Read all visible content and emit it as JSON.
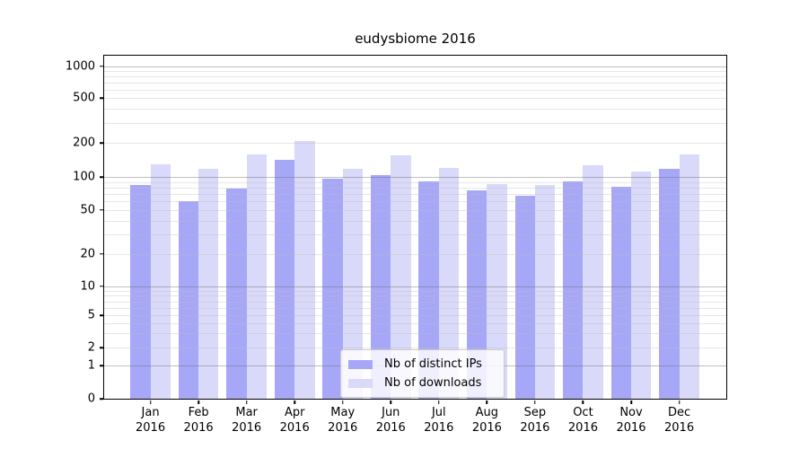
{
  "chart_data": {
    "type": "bar",
    "title": "eudysbiome 2016",
    "categories": [
      "Jan",
      "Feb",
      "Mar",
      "Apr",
      "May",
      "Jun",
      "Jul",
      "Aug",
      "Sep",
      "Oct",
      "Nov",
      "Dec"
    ],
    "year": "2016",
    "series": [
      {
        "name": "Nb of distinct IPs",
        "color": "#a7a7f7",
        "values": [
          85,
          60,
          78,
          142,
          97,
          104,
          91,
          75,
          68,
          92,
          82,
          118
        ]
      },
      {
        "name": "Nb of downloads",
        "color": "#d9d9f9",
        "values": [
          129,
          119,
          160,
          211,
          118,
          156,
          120,
          86,
          85,
          128,
          112,
          158
        ]
      }
    ],
    "y_ticks": [
      1000,
      500,
      200,
      100,
      50,
      20,
      10,
      5,
      2,
      1,
      0
    ],
    "y_scale": "log (linear below 1, 0 shown at baseline)",
    "ylim": [
      0,
      1250
    ],
    "xlabel": "",
    "ylabel": "",
    "grid": true,
    "gridlines_over_bars": true,
    "legend_position": "lower center",
    "colors": {
      "ips_bar": "#a7a7f7",
      "downloads_bar": "#d9d9f9",
      "major_gridline": "#b5b5b5",
      "minor_gridline": "#e8e8e8",
      "axis": "#000000",
      "background": "#ffffff"
    }
  }
}
